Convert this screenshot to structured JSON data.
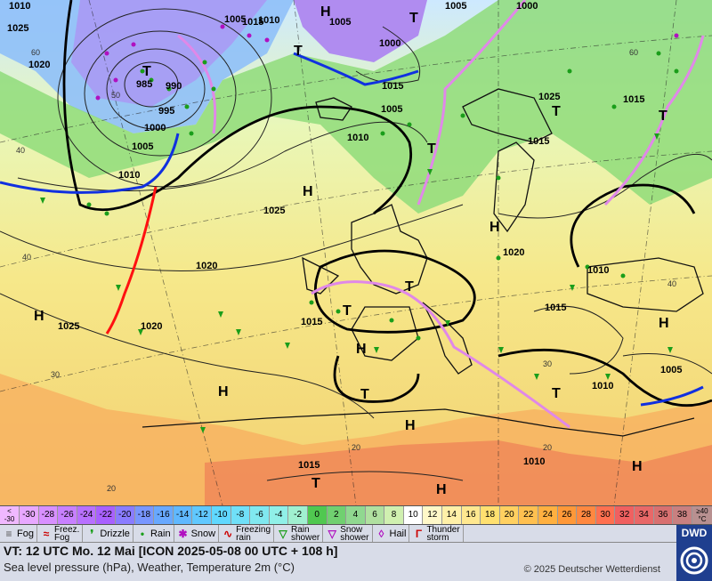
{
  "map": {
    "isobar_labels": [
      "1025",
      "1020",
      "985",
      "990",
      "995",
      "1000",
      "1005",
      "1010",
      "1015",
      "1025",
      "1020",
      "1015",
      "1010",
      "1005",
      "1000",
      "1015",
      "1005",
      "1010",
      "1015",
      "1025",
      "1020",
      "1015",
      "1010",
      "1005",
      "1015",
      "1010",
      "1015",
      "1020",
      "1025",
      "1010",
      "1005",
      "1000",
      "1005",
      "1010"
    ],
    "pressure_centers": [
      "H",
      "T",
      "T",
      "T",
      "H",
      "H",
      "T",
      "T",
      "T",
      "H",
      "H",
      "H",
      "T",
      "H",
      "T",
      "H",
      "T",
      "T",
      "H",
      "T",
      "H"
    ],
    "temp_labels": [
      "60",
      "50",
      "40",
      "30",
      "20",
      "60",
      "40",
      "40",
      "30",
      "20",
      "20"
    ],
    "colors": {
      "sea_warm": "#f3e48a",
      "land_green": "#7fd47f",
      "cold_purple": "#b98cf0",
      "hot_orange": "#f6a45a",
      "cold_front": "#1030e0",
      "warm_front": "#ff1010",
      "occluded": "#e088e8"
    }
  },
  "scale": {
    "first": [
      "<",
      "-30"
    ],
    "values": [
      "-30",
      "-28",
      "-26",
      "-24",
      "-22",
      "-20",
      "-18",
      "-16",
      "-14",
      "-12",
      "-10",
      "-8",
      "-6",
      "-4",
      "-2",
      "0",
      "2",
      "4",
      "6",
      "8",
      "10",
      "12",
      "14",
      "16",
      "18",
      "20",
      "22",
      "24",
      "26",
      "28",
      "30",
      "32",
      "34",
      "36",
      "38"
    ],
    "last": [
      "≥40",
      "°C"
    ],
    "colors": [
      "#e8a8ff",
      "#d890ff",
      "#c880ff",
      "#b870ff",
      "#a860ff",
      "#8a7cff",
      "#7896ff",
      "#68a8ff",
      "#60b8ff",
      "#60c8ff",
      "#60d8ff",
      "#70e0f8",
      "#80e8f0",
      "#90f0e8",
      "#a0f0d0",
      "#50c850",
      "#70d070",
      "#90d890",
      "#b0e0a0",
      "#d0f0b0",
      "#ffffff",
      "#fff8c8",
      "#fff0a8",
      "#ffe890",
      "#ffe070",
      "#ffd060",
      "#ffc050",
      "#ffb040",
      "#ff9838",
      "#ff8840",
      "#ff7050",
      "#f06060",
      "#e86868",
      "#d87070",
      "#c88080"
    ]
  },
  "legend": [
    {
      "name": "fog",
      "label": "Fog",
      "two": false
    },
    {
      "name": "freezing-fog",
      "label1": "Freez.",
      "label2": "Fog",
      "two": true
    },
    {
      "name": "drizzle",
      "label": "Drizzle",
      "two": false
    },
    {
      "name": "rain",
      "label": "Rain",
      "two": false
    },
    {
      "name": "snow",
      "label": "Snow",
      "two": false
    },
    {
      "name": "freezing-rain",
      "label1": "Freezing",
      "label2": "rain",
      "two": true
    },
    {
      "name": "rain-shower",
      "label1": "Rain",
      "label2": "shower",
      "two": true
    },
    {
      "name": "snow-shower",
      "label1": "Snow",
      "label2": "shower",
      "two": true
    },
    {
      "name": "hail",
      "label": "Hail",
      "two": false
    },
    {
      "name": "thunderstorm",
      "label1": "Thunder",
      "label2": "storm",
      "two": true
    }
  ],
  "info": {
    "valid_time": "VT: 12 UTC Mo.  12 Mai [ICON 2025-05-08  00 UTC + 108 h]",
    "subtitle": "Sea level pressure (hPa), Weather, Temperature 2m (°C)",
    "copyright": "© 2025 Deutscher Wetterdienst",
    "logo": "DWD"
  }
}
